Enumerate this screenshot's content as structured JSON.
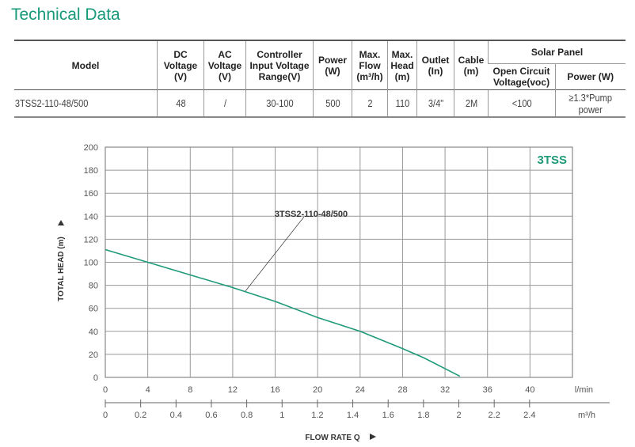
{
  "title": "Technical Data",
  "table": {
    "headers": {
      "model": "Model",
      "dc": "DC Voltage (V)",
      "ac": "AC Voltage (V)",
      "controller": "Controller Input Voltage Range(V)",
      "power": "Power (W)",
      "flow": "Max. Flow (m³/h)",
      "head": "Max. Head (m)",
      "outlet": "Outlet (In)",
      "cable": "Cable (m)",
      "solar": "Solar Panel",
      "ocv": "Open Circuit Voltage(voc)",
      "spower": "Power (W)"
    },
    "rows": [
      [
        "3TSS2-110-48/500",
        "48",
        "/",
        "30-100",
        "500",
        "2",
        "110",
        "3/4\"",
        "2M",
        "<100",
        "≥1.3*Pump power"
      ]
    ]
  },
  "chart_data": {
    "type": "line",
    "badge": "3TSS",
    "ylabel": "TOTAL HEAD (m)",
    "xlabel": "FLOW RATE Q",
    "ylim": [
      0,
      200
    ],
    "yticks": [
      0,
      20,
      40,
      60,
      80,
      100,
      120,
      140,
      160,
      180,
      200
    ],
    "xlim": [
      0,
      44
    ],
    "xticks": [
      0,
      4,
      8,
      12,
      16,
      20,
      24,
      28,
      32,
      36,
      40
    ],
    "xunit": "l/min",
    "x2ticks": [
      "0",
      "0.2",
      "0.4",
      "0.6",
      "0.8",
      "1",
      "1.2",
      "1.4",
      "1.6",
      "1.8",
      "2",
      "2.2",
      "2.4"
    ],
    "x2unit": "m³/h",
    "grid": true,
    "series": [
      {
        "name": "3TSS2-110-48/500",
        "color": "#1f9a7a",
        "x": [
          0,
          4,
          8,
          12,
          16,
          20,
          24,
          28,
          30,
          33.4
        ],
        "y": [
          111,
          100,
          89,
          78,
          66,
          52,
          40,
          25,
          17,
          1
        ]
      }
    ]
  }
}
